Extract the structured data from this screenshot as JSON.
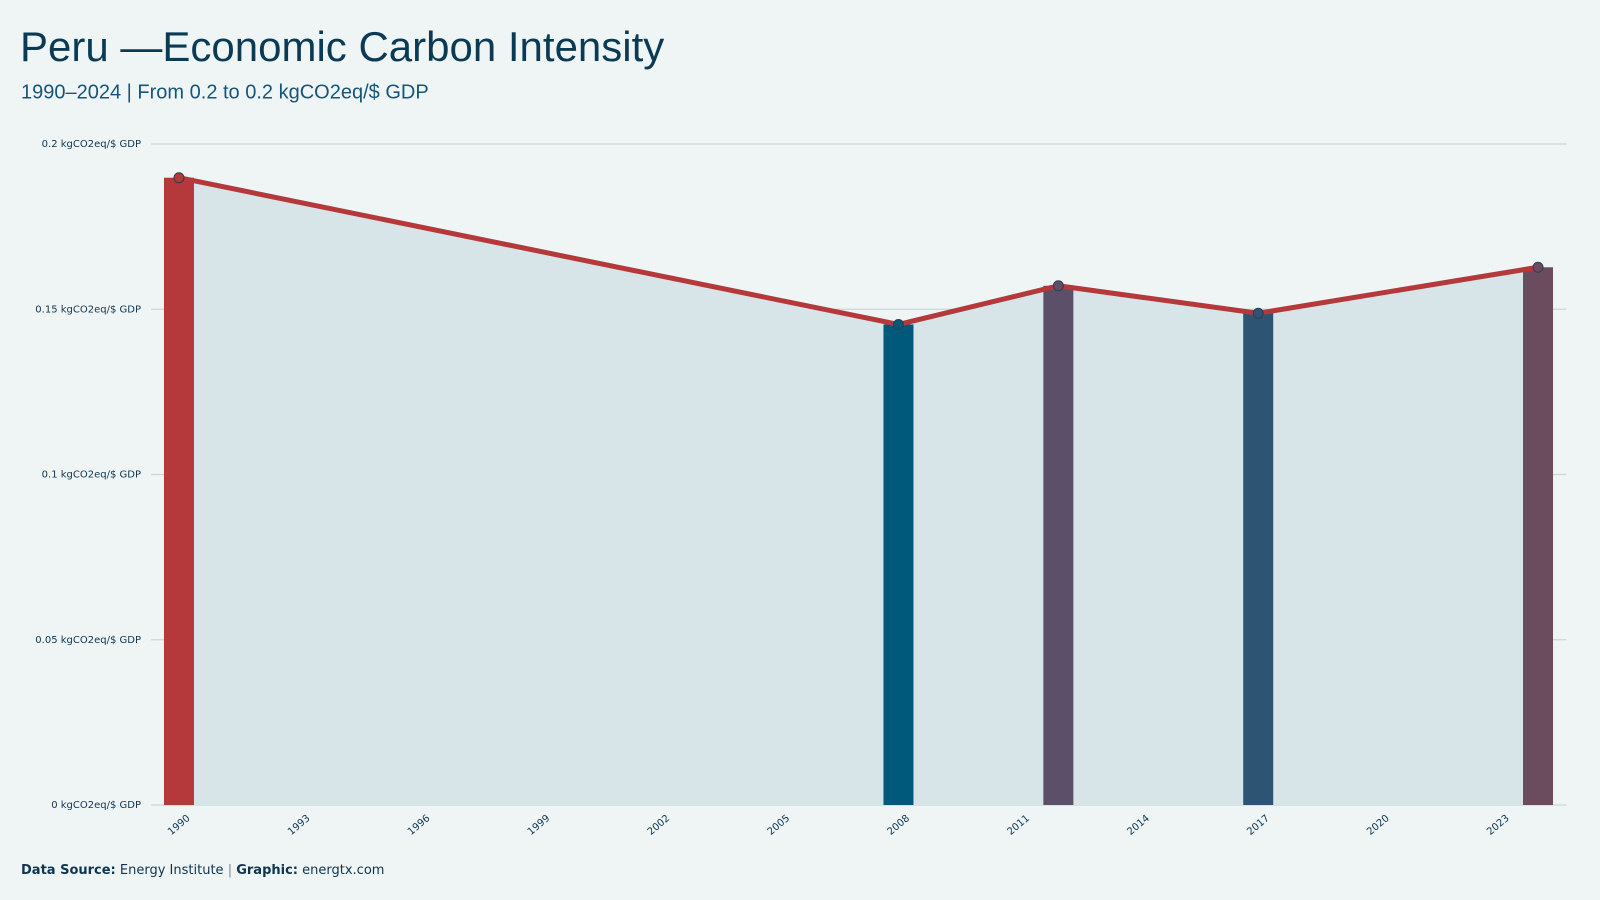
{
  "chart_data": {
    "type": "bar-line",
    "title": "Peru —Economic Carbon Intensity",
    "subtitle": "1990–2024 | From 0.2 to 0.2 kgCO2eq/$ GDP",
    "x": [
      1990,
      2008,
      2012,
      2017,
      2024
    ],
    "values": [
      0.1898,
      0.1454,
      0.1571,
      0.1488,
      0.1627
    ],
    "bar_colors": [
      "#b5383a",
      "#00587a",
      "#5c4f6a",
      "#2d5473",
      "#6b4c5e"
    ],
    "line_color": "#b5383a",
    "area_color": "#d7e4e8",
    "xlim": [
      1989.3,
      2024.7
    ],
    "xticks": [
      1990,
      1993,
      1996,
      1999,
      2002,
      2005,
      2008,
      2011,
      2014,
      2017,
      2020,
      2023
    ],
    "ylim": [
      0,
      0.2
    ],
    "yticks": [
      {
        "value": 0,
        "label": "0 kgCO2eq/$ GDP"
      },
      {
        "value": 0.05,
        "label": "0.05 kgCO2eq/$ GDP"
      },
      {
        "value": 0.1,
        "label": "0.1 kgCO2eq/$ GDP"
      },
      {
        "value": 0.15,
        "label": "0.15 kgCO2eq/$ GDP"
      },
      {
        "value": 0.2,
        "label": "0.2 kgCO2eq/$ GDP"
      }
    ],
    "grid": true,
    "footer": {
      "source_label": "Data Source:",
      "source": "Energy Institute",
      "separator": "|",
      "graphic_label": "Graphic:",
      "graphic": "energtx.com"
    }
  }
}
